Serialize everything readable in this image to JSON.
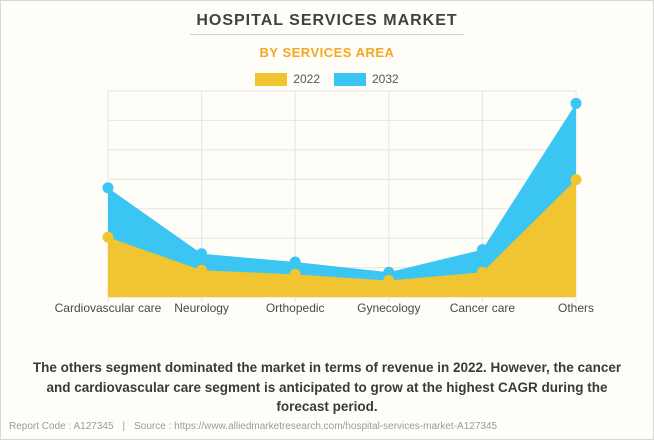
{
  "chart_data": {
    "type": "area",
    "title": "HOSPITAL SERVICES MARKET",
    "subtitle": "BY SERVICES AREA",
    "categories": [
      "Cardiovascular care",
      "Neurology",
      "Orthopedic",
      "Gynecology",
      "Cancer care",
      "Others"
    ],
    "series": [
      {
        "name": "2022",
        "color": "#F1C431",
        "values": [
          29,
          13,
          11,
          8,
          12,
          57
        ]
      },
      {
        "name": "2032",
        "color": "#3BC5F3",
        "values": [
          53,
          21,
          17,
          12,
          23,
          94
        ]
      }
    ],
    "xlabel": "",
    "ylabel": "",
    "ylim": [
      0,
      100
    ],
    "grid": true,
    "legend_position": "top",
    "y_axis_labels_visible": false
  },
  "description": {
    "lines": [
      "The others segment dominated the market in terms of revenue in 2022. However, the cancer",
      "and cardiovascular care segment is anticipated to grow at the highest CAGR during the",
      "forecast period."
    ]
  },
  "footer": {
    "report_code": "Report Code : A127345",
    "separator": "|",
    "source": "Source : https://www.alliedmarketresearch.com/hospital-services-market-A127345"
  },
  "colors": {
    "background": "#FFFDF8",
    "accent_orange": "#F6A623",
    "series_2022": "#F1C431",
    "series_2032": "#3BC5F3",
    "gridline": "#E6E5E0",
    "title_text": "#414141"
  }
}
